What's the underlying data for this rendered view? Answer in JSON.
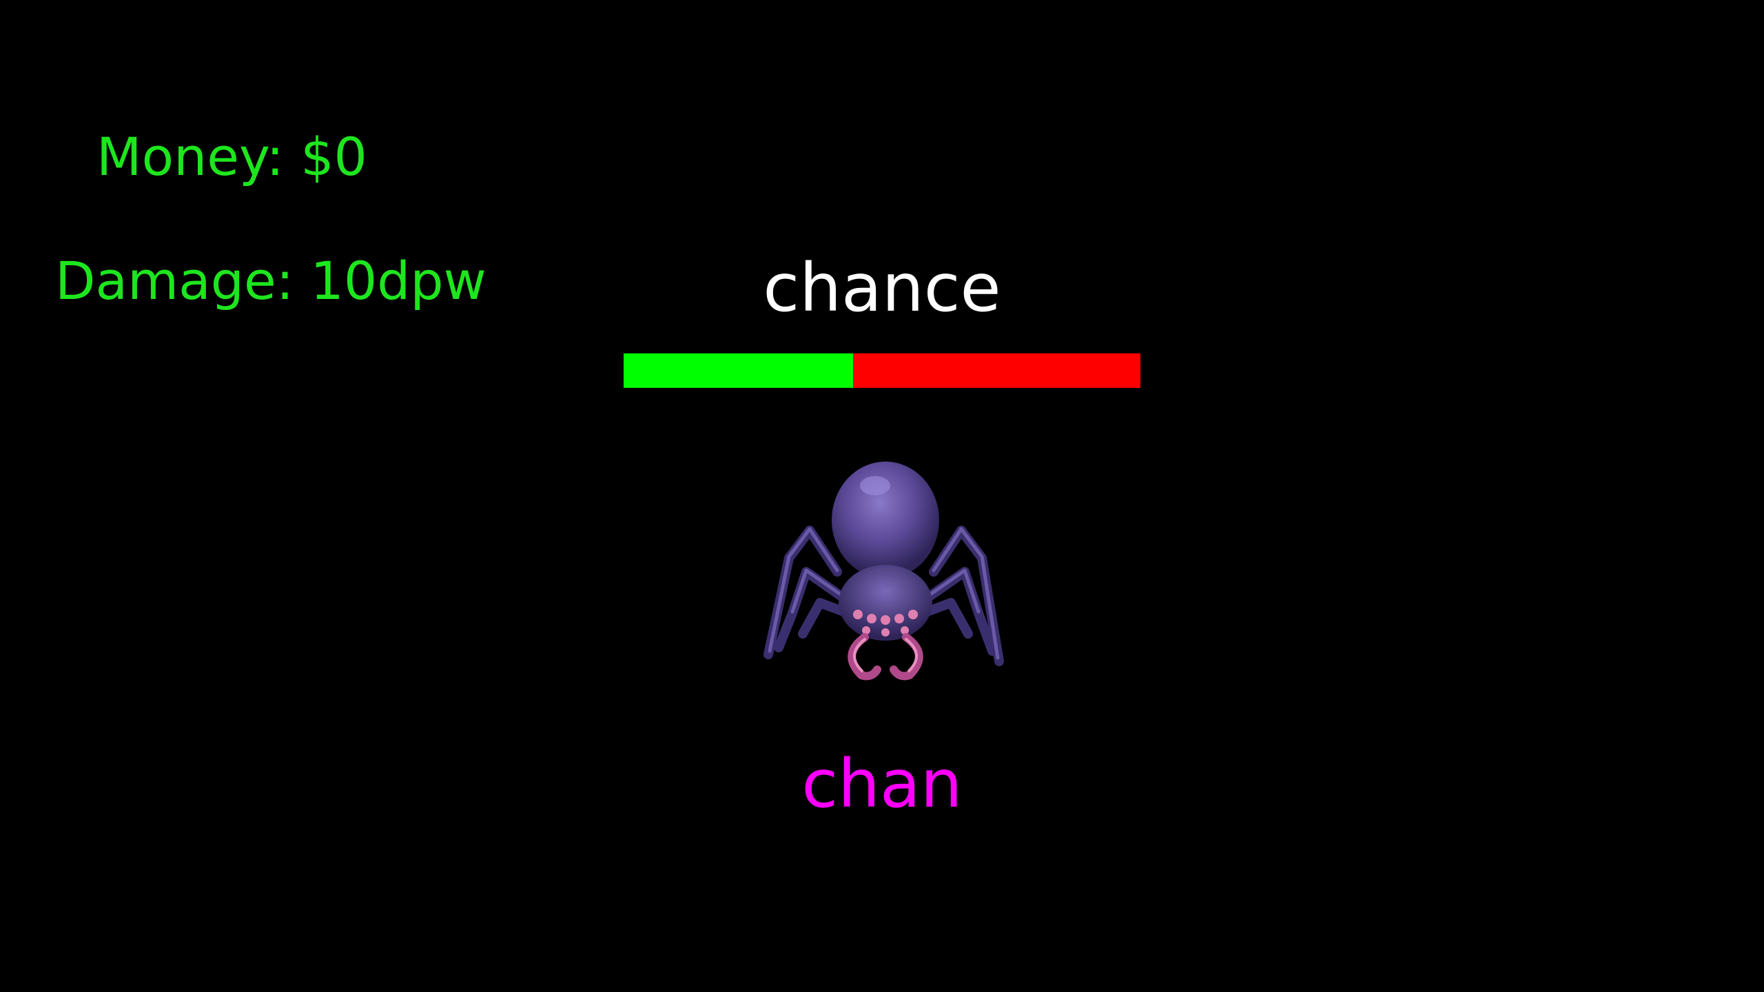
{
  "hud": {
    "money": "Money: $0",
    "damage": "Damage: 10dpw"
  },
  "enemy": {
    "word": "chance",
    "health_fraction": 0.444,
    "sprite": "spider-icon"
  },
  "input": {
    "typed": "chan"
  },
  "colors": {
    "background": "#000000",
    "hud_text": "#1ee61e",
    "word_text": "#ffffff",
    "health_remaining": "#00ff00",
    "health_lost": "#ff0000",
    "typed_text": "#ff00ff"
  }
}
